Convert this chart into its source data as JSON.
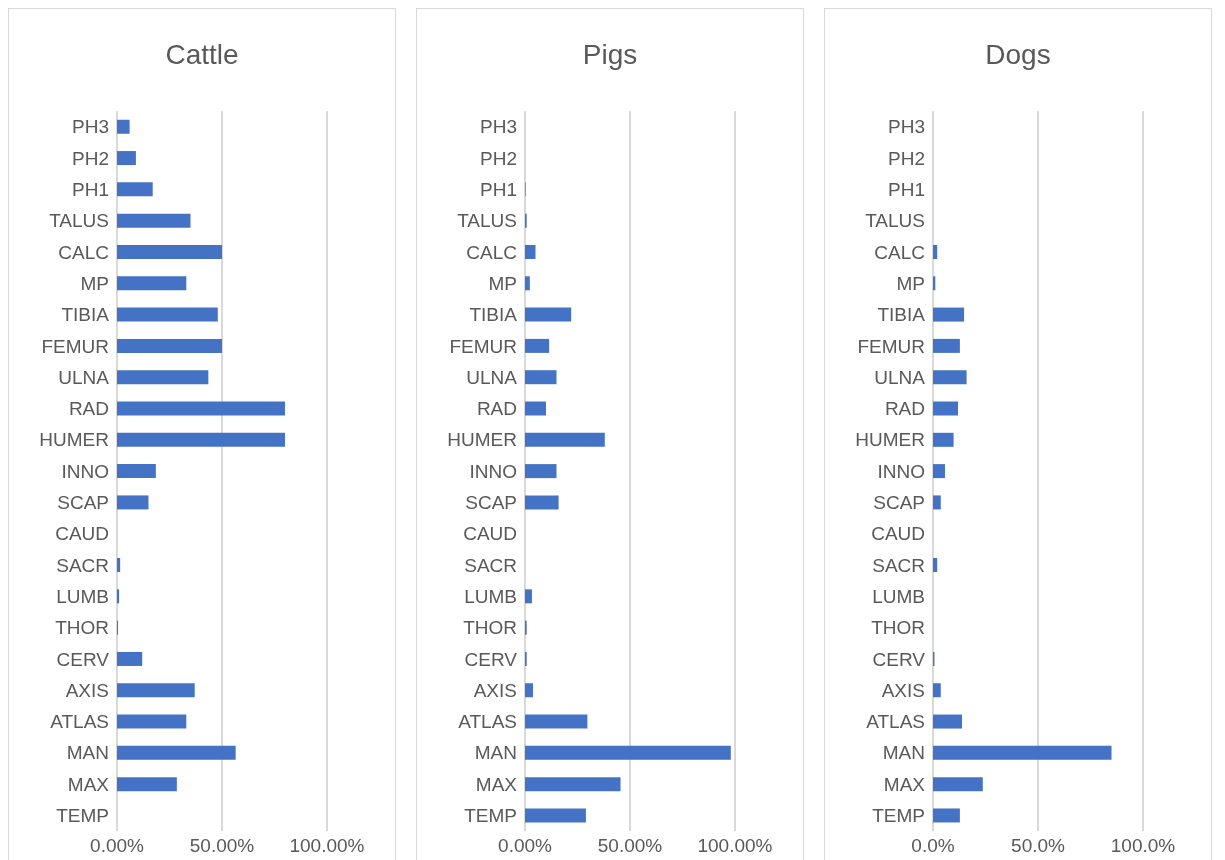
{
  "chart_data": [
    {
      "type": "bar",
      "orientation": "horizontal",
      "title": "Cattle",
      "categories": [
        "PH3",
        "PH2",
        "PH1",
        "TALUS",
        "CALC",
        "MP",
        "TIBIA",
        "FEMUR",
        "ULNA",
        "RAD",
        "HUMER",
        "INNO",
        "SCAP",
        "CAUD",
        "SACR",
        "LUMB",
        "THOR",
        "CERV",
        "AXIS",
        "ATLAS",
        "MAN",
        "MAX",
        "TEMP"
      ],
      "values": [
        6,
        9,
        17,
        35,
        50,
        33,
        48,
        50,
        43.5,
        80,
        80,
        18.5,
        15,
        0,
        1.5,
        1,
        0.5,
        12,
        37,
        33,
        56.5,
        28.5,
        0
      ],
      "color": "#4472c4",
      "xlim": [
        0,
        100
      ],
      "xticks": [
        {
          "value": 0,
          "label": "0.00%"
        },
        {
          "value": 50,
          "label": "50.00%"
        },
        {
          "value": 100,
          "label": "100.00%"
        }
      ],
      "grid": "x"
    },
    {
      "type": "bar",
      "orientation": "horizontal",
      "title": "Pigs",
      "categories": [
        "PH3",
        "PH2",
        "PH1",
        "TALUS",
        "CALC",
        "MP",
        "TIBIA",
        "FEMUR",
        "ULNA",
        "RAD",
        "HUMER",
        "INNO",
        "SCAP",
        "CAUD",
        "SACR",
        "LUMB",
        "THOR",
        "CERV",
        "AXIS",
        "ATLAS",
        "MAN",
        "MAX",
        "TEMP"
      ],
      "values": [
        0,
        0,
        0.3,
        0.8,
        5,
        2.3,
        22,
        11.5,
        15,
        10,
        38,
        15,
        16,
        0,
        0,
        3.3,
        0.8,
        0.8,
        3.8,
        29.7,
        98,
        45.5,
        29
      ],
      "color": "#4472c4",
      "xlim": [
        0,
        100
      ],
      "xticks": [
        {
          "value": 0,
          "label": "0.00%"
        },
        {
          "value": 50,
          "label": "50.00%"
        },
        {
          "value": 100,
          "label": "100.00%"
        }
      ],
      "grid": "x"
    },
    {
      "type": "bar",
      "orientation": "horizontal",
      "title": "Dogs",
      "categories": [
        "PH3",
        "PH2",
        "PH1",
        "TALUS",
        "CALC",
        "MP",
        "TIBIA",
        "FEMUR",
        "ULNA",
        "RAD",
        "HUMER",
        "INNO",
        "SCAP",
        "CAUD",
        "SACR",
        "LUMB",
        "THOR",
        "CERV",
        "AXIS",
        "ATLAS",
        "MAN",
        "MAX",
        "TEMP"
      ],
      "values": [
        0,
        0,
        0,
        0,
        2,
        1.1,
        14.8,
        12.8,
        16,
        11.9,
        9.8,
        5.7,
        3.7,
        0,
        2,
        0,
        0,
        0.7,
        3.7,
        13.8,
        85,
        23.7,
        12.8
      ],
      "color": "#4472c4",
      "xlim": [
        0,
        100
      ],
      "xticks": [
        {
          "value": 0,
          "label": "0.0%"
        },
        {
          "value": 50,
          "label": "50.0%"
        },
        {
          "value": 100,
          "label": "100.0%"
        }
      ],
      "grid": "x"
    }
  ]
}
